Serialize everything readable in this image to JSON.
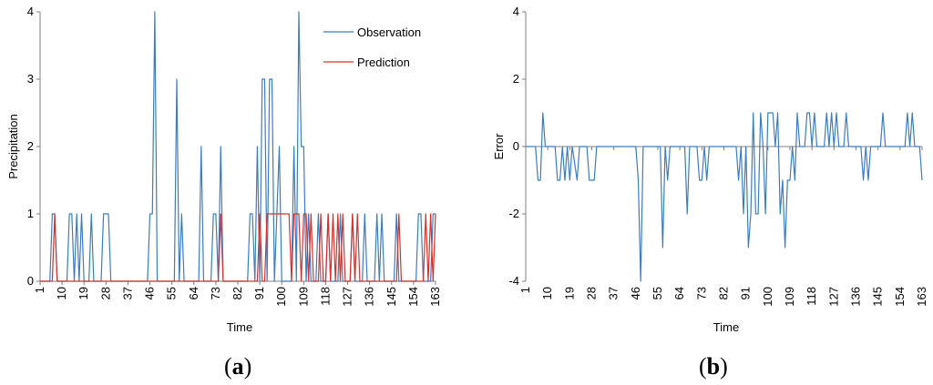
{
  "colors": {
    "observation": "#3A7DC2",
    "prediction": "#D9302B",
    "error": "#3A7DC2",
    "axis": "#808080"
  },
  "chart_data": [
    {
      "id": "a",
      "type": "line",
      "panel_label": "a",
      "xlabel": "Time",
      "ylabel": "Precipitation",
      "xlim": [
        1,
        163
      ],
      "ylim": [
        0,
        4
      ],
      "x_ticks": [
        1,
        10,
        19,
        28,
        37,
        46,
        55,
        64,
        73,
        82,
        91,
        100,
        109,
        118,
        127,
        136,
        145,
        154,
        163
      ],
      "y_ticks": [
        0,
        1,
        2,
        3,
        4
      ],
      "legend_position": "top-right",
      "series": [
        {
          "name": "Observation",
          "color": "#3A7DC2",
          "points": [
            [
              1,
              0
            ],
            [
              5,
              0
            ],
            [
              6,
              1
            ],
            [
              7,
              1
            ],
            [
              8,
              0
            ],
            [
              12,
              0
            ],
            [
              13,
              1
            ],
            [
              14,
              1
            ],
            [
              15,
              0
            ],
            [
              16,
              1
            ],
            [
              17,
              0
            ],
            [
              18,
              1
            ],
            [
              19,
              0
            ],
            [
              21,
              0
            ],
            [
              22,
              1
            ],
            [
              23,
              0
            ],
            [
              26,
              0
            ],
            [
              27,
              1
            ],
            [
              29,
              1
            ],
            [
              30,
              0
            ],
            [
              45,
              0
            ],
            [
              46,
              1
            ],
            [
              47,
              1
            ],
            [
              48,
              4
            ],
            [
              49,
              0
            ],
            [
              56,
              0
            ],
            [
              57,
              3
            ],
            [
              58,
              0
            ],
            [
              59,
              1
            ],
            [
              60,
              0
            ],
            [
              66,
              0
            ],
            [
              67,
              2
            ],
            [
              68,
              0
            ],
            [
              71,
              0
            ],
            [
              72,
              1
            ],
            [
              73,
              1
            ],
            [
              74,
              0
            ],
            [
              75,
              2
            ],
            [
              76,
              0
            ],
            [
              86,
              0
            ],
            [
              87,
              1
            ],
            [
              88,
              1
            ],
            [
              89,
              0
            ],
            [
              90,
              2
            ],
            [
              91,
              0
            ],
            [
              92,
              3
            ],
            [
              93,
              3
            ],
            [
              94,
              0
            ],
            [
              95,
              3
            ],
            [
              96,
              3
            ],
            [
              97,
              0
            ],
            [
              99,
              2
            ],
            [
              100,
              0
            ],
            [
              104,
              0
            ],
            [
              105,
              2
            ],
            [
              106,
              0
            ],
            [
              107,
              4
            ],
            [
              108,
              2
            ],
            [
              109,
              2
            ],
            [
              110,
              0
            ],
            [
              111,
              1
            ],
            [
              112,
              0
            ],
            [
              114,
              0
            ],
            [
              115,
              1
            ],
            [
              116,
              0
            ],
            [
              118,
              0
            ],
            [
              119,
              1
            ],
            [
              120,
              0
            ],
            [
              123,
              0
            ],
            [
              124,
              1
            ],
            [
              125,
              0
            ],
            [
              128,
              0
            ],
            [
              129,
              1
            ],
            [
              130,
              0
            ],
            [
              133,
              0
            ],
            [
              134,
              1
            ],
            [
              135,
              0
            ],
            [
              138,
              0
            ],
            [
              139,
              1
            ],
            [
              140,
              0
            ],
            [
              141,
              1
            ],
            [
              142,
              0
            ],
            [
              146,
              0
            ],
            [
              147,
              1
            ],
            [
              148,
              0
            ],
            [
              155,
              0
            ],
            [
              156,
              1
            ],
            [
              157,
              1
            ],
            [
              158,
              0
            ],
            [
              161,
              0
            ],
            [
              162,
              1
            ],
            [
              163,
              1
            ]
          ]
        },
        {
          "name": "Prediction",
          "color": "#D9302B",
          "points": [
            [
              1,
              0
            ],
            [
              6,
              0
            ],
            [
              7,
              1
            ],
            [
              8,
              0
            ],
            [
              74,
              0
            ],
            [
              75,
              1
            ],
            [
              76,
              0
            ],
            [
              90,
              0
            ],
            [
              91,
              1
            ],
            [
              92,
              0
            ],
            [
              93,
              0
            ],
            [
              94,
              1
            ],
            [
              103,
              1
            ],
            [
              104,
              0
            ],
            [
              105,
              1
            ],
            [
              107,
              1
            ],
            [
              108,
              0
            ],
            [
              109,
              1
            ],
            [
              110,
              1
            ],
            [
              111,
              0
            ],
            [
              112,
              1
            ],
            [
              113,
              0
            ],
            [
              115,
              0
            ],
            [
              116,
              1
            ],
            [
              117,
              0
            ],
            [
              118,
              0
            ],
            [
              119,
              1
            ],
            [
              120,
              0
            ],
            [
              121,
              1
            ],
            [
              122,
              0
            ],
            [
              123,
              1
            ],
            [
              124,
              0
            ],
            [
              125,
              1
            ],
            [
              126,
              0
            ],
            [
              128,
              0
            ],
            [
              129,
              1
            ],
            [
              130,
              0
            ],
            [
              131,
              1
            ],
            [
              132,
              0
            ],
            [
              147,
              0
            ],
            [
              148,
              1
            ],
            [
              149,
              0
            ],
            [
              158,
              0
            ],
            [
              159,
              1
            ],
            [
              160,
              0
            ],
            [
              161,
              1
            ],
            [
              162,
              0
            ],
            [
              163,
              1
            ]
          ]
        }
      ]
    },
    {
      "id": "b",
      "type": "line",
      "panel_label": "b",
      "xlabel": "Time",
      "ylabel": "Error",
      "xlim": [
        1,
        163
      ],
      "ylim": [
        -4,
        4
      ],
      "x_ticks": [
        1,
        10,
        19,
        28,
        37,
        46,
        55,
        64,
        73,
        82,
        91,
        100,
        109,
        118,
        127,
        136,
        145,
        154,
        163
      ],
      "y_ticks": [
        -4,
        -2,
        0,
        2,
        4
      ],
      "series": [
        {
          "name": "Error",
          "color": "#3A7DC2",
          "points": [
            [
              1,
              0
            ],
            [
              5,
              0
            ],
            [
              6,
              -1
            ],
            [
              7,
              -1
            ],
            [
              8,
              1
            ],
            [
              9,
              0
            ],
            [
              13,
              0
            ],
            [
              14,
              -1
            ],
            [
              15,
              -1
            ],
            [
              16,
              0
            ],
            [
              17,
              -1
            ],
            [
              18,
              0
            ],
            [
              19,
              -1
            ],
            [
              20,
              0
            ],
            [
              22,
              -1
            ],
            [
              23,
              0
            ],
            [
              26,
              0
            ],
            [
              27,
              -1
            ],
            [
              29,
              -1
            ],
            [
              30,
              0
            ],
            [
              46,
              0
            ],
            [
              47,
              -1
            ],
            [
              48,
              -4
            ],
            [
              49,
              0
            ],
            [
              56,
              0
            ],
            [
              57,
              -3
            ],
            [
              58,
              0
            ],
            [
              59,
              -1
            ],
            [
              60,
              0
            ],
            [
              66,
              0
            ],
            [
              67,
              -2
            ],
            [
              68,
              0
            ],
            [
              71,
              0
            ],
            [
              72,
              -1
            ],
            [
              73,
              -1
            ],
            [
              74,
              0
            ],
            [
              75,
              -1
            ],
            [
              76,
              0
            ],
            [
              87,
              0
            ],
            [
              88,
              -1
            ],
            [
              89,
              0
            ],
            [
              90,
              -2
            ],
            [
              91,
              0
            ],
            [
              92,
              -3
            ],
            [
              93,
              -2
            ],
            [
              94,
              1
            ],
            [
              95,
              -2
            ],
            [
              96,
              -2
            ],
            [
              97,
              1
            ],
            [
              98,
              0
            ],
            [
              99,
              -2
            ],
            [
              100,
              1
            ],
            [
              102,
              1
            ],
            [
              103,
              0
            ],
            [
              104,
              1
            ],
            [
              105,
              -2
            ],
            [
              106,
              -1
            ],
            [
              107,
              -3
            ],
            [
              108,
              -1
            ],
            [
              109,
              -1
            ],
            [
              110,
              0
            ],
            [
              111,
              -1
            ],
            [
              112,
              1
            ],
            [
              113,
              0
            ],
            [
              115,
              0
            ],
            [
              116,
              1
            ],
            [
              117,
              1
            ],
            [
              118,
              0
            ],
            [
              119,
              1
            ],
            [
              120,
              0
            ],
            [
              123,
              0
            ],
            [
              124,
              1
            ],
            [
              125,
              0
            ],
            [
              126,
              1
            ],
            [
              127,
              0
            ],
            [
              128,
              1
            ],
            [
              129,
              0
            ],
            [
              131,
              0
            ],
            [
              132,
              1
            ],
            [
              133,
              0
            ],
            [
              138,
              0
            ],
            [
              139,
              -1
            ],
            [
              140,
              0
            ],
            [
              141,
              -1
            ],
            [
              142,
              0
            ],
            [
              146,
              0
            ],
            [
              147,
              1
            ],
            [
              148,
              0
            ],
            [
              156,
              0
            ],
            [
              157,
              1
            ],
            [
              158,
              0
            ],
            [
              159,
              1
            ],
            [
              160,
              0
            ],
            [
              162,
              0
            ],
            [
              163,
              -1
            ]
          ]
        }
      ]
    }
  ]
}
